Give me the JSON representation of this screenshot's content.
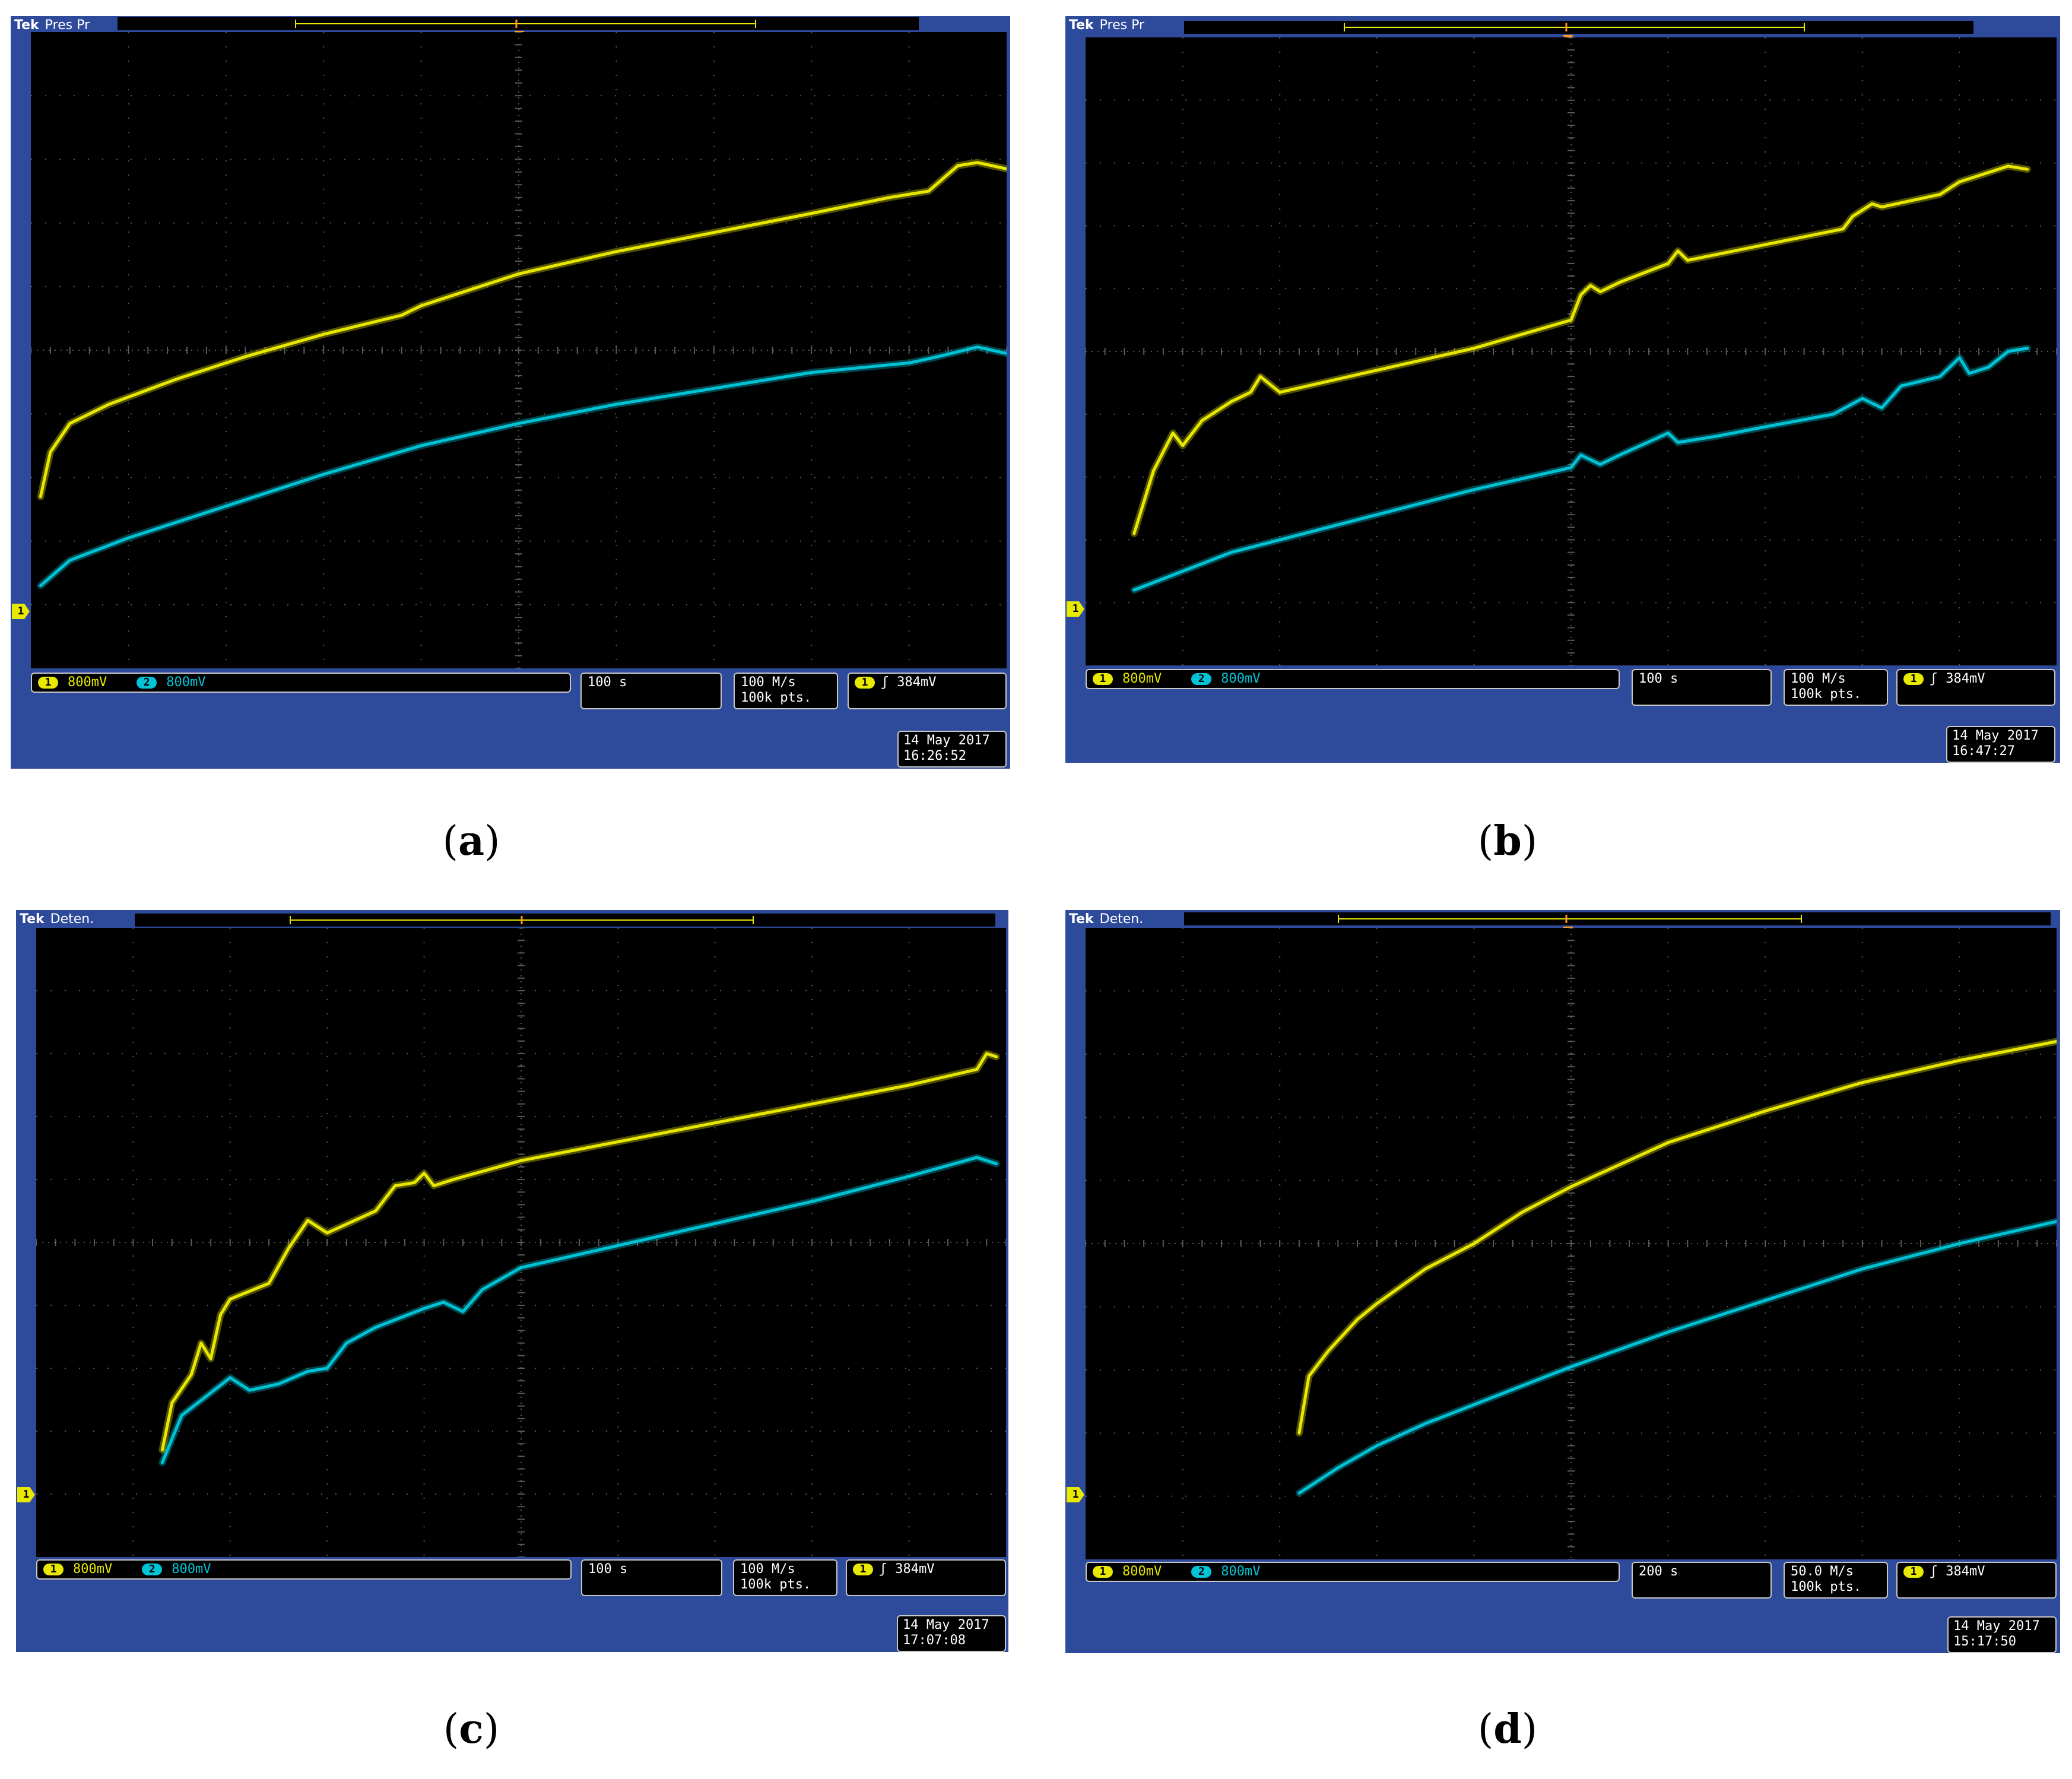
{
  "colors": {
    "ch1": "#e8e800",
    "ch2": "#00c4d6",
    "bezel": "#2e4a9a",
    "grid": "#5a5a5a",
    "trigger_marker": "#ff9a20"
  },
  "panels": [
    {
      "id": "a",
      "caption_label": "a",
      "brand": "Tek",
      "mode": "Pres Pr",
      "ch1_badge": "1",
      "ch1_scale": "800mV",
      "ch2_badge": "2",
      "ch2_scale": "800mV",
      "timebase": "100 s",
      "sample_rate": "100 M/s",
      "record_length": "100k pts.",
      "trigger_badge": "1",
      "trigger_slope_icon": "rising-edge-icon",
      "trigger_symbol": "ʃ",
      "trigger_level": "384mV",
      "date": "14 May 2017",
      "time": "16:26:52",
      "ground_marker": "1",
      "traces": {
        "ch1": [
          [
            0.01,
            7.3
          ],
          [
            0.02,
            6.6
          ],
          [
            0.04,
            6.15
          ],
          [
            0.08,
            5.85
          ],
          [
            0.15,
            5.45
          ],
          [
            0.22,
            5.1
          ],
          [
            0.3,
            4.75
          ],
          [
            0.38,
            4.45
          ],
          [
            0.4,
            4.3
          ],
          [
            0.44,
            4.1
          ],
          [
            0.5,
            3.8
          ],
          [
            0.6,
            3.45
          ],
          [
            0.7,
            3.15
          ],
          [
            0.8,
            2.85
          ],
          [
            0.88,
            2.6
          ],
          [
            0.92,
            2.5
          ],
          [
            0.95,
            2.1
          ],
          [
            0.97,
            2.05
          ],
          [
            1.0,
            2.15
          ]
        ],
        "ch2": [
          [
            0.01,
            8.7
          ],
          [
            0.04,
            8.3
          ],
          [
            0.1,
            7.95
          ],
          [
            0.2,
            7.45
          ],
          [
            0.3,
            6.95
          ],
          [
            0.4,
            6.5
          ],
          [
            0.5,
            6.15
          ],
          [
            0.6,
            5.85
          ],
          [
            0.7,
            5.6
          ],
          [
            0.8,
            5.35
          ],
          [
            0.9,
            5.2
          ],
          [
            0.93,
            5.1
          ],
          [
            0.97,
            4.95
          ],
          [
            1.0,
            5.05
          ]
        ]
      }
    },
    {
      "id": "b",
      "caption_label": "b",
      "brand": "Tek",
      "mode": "Pres Pr",
      "ch1_badge": "1",
      "ch1_scale": "800mV",
      "ch2_badge": "2",
      "ch2_scale": "800mV",
      "timebase": "100 s",
      "sample_rate": "100 M/s",
      "record_length": "100k pts.",
      "trigger_badge": "1",
      "trigger_slope_icon": "rising-edge-icon",
      "trigger_symbol": "ʃ",
      "trigger_level": "384mV",
      "date": "14 May 2017",
      "time": "16:47:27",
      "ground_marker": "1",
      "traces": {
        "ch1": [
          [
            0.05,
            7.9
          ],
          [
            0.07,
            6.9
          ],
          [
            0.09,
            6.3
          ],
          [
            0.1,
            6.5
          ],
          [
            0.12,
            6.1
          ],
          [
            0.15,
            5.8
          ],
          [
            0.17,
            5.65
          ],
          [
            0.18,
            5.4
          ],
          [
            0.2,
            5.65
          ],
          [
            0.3,
            5.3
          ],
          [
            0.4,
            4.95
          ],
          [
            0.5,
            4.5
          ],
          [
            0.51,
            4.1
          ],
          [
            0.52,
            3.95
          ],
          [
            0.53,
            4.05
          ],
          [
            0.55,
            3.9
          ],
          [
            0.6,
            3.6
          ],
          [
            0.61,
            3.4
          ],
          [
            0.62,
            3.55
          ],
          [
            0.7,
            3.3
          ],
          [
            0.78,
            3.05
          ],
          [
            0.79,
            2.85
          ],
          [
            0.81,
            2.65
          ],
          [
            0.82,
            2.7
          ],
          [
            0.88,
            2.5
          ],
          [
            0.9,
            2.3
          ],
          [
            0.93,
            2.15
          ],
          [
            0.95,
            2.05
          ],
          [
            0.97,
            2.1
          ]
        ],
        "ch2": [
          [
            0.05,
            8.8
          ],
          [
            0.1,
            8.5
          ],
          [
            0.15,
            8.2
          ],
          [
            0.2,
            8.0
          ],
          [
            0.3,
            7.6
          ],
          [
            0.4,
            7.2
          ],
          [
            0.5,
            6.85
          ],
          [
            0.51,
            6.65
          ],
          [
            0.53,
            6.8
          ],
          [
            0.55,
            6.65
          ],
          [
            0.6,
            6.3
          ],
          [
            0.61,
            6.45
          ],
          [
            0.65,
            6.35
          ],
          [
            0.7,
            6.2
          ],
          [
            0.77,
            6.0
          ],
          [
            0.8,
            5.75
          ],
          [
            0.82,
            5.9
          ],
          [
            0.84,
            5.55
          ],
          [
            0.88,
            5.4
          ],
          [
            0.9,
            5.1
          ],
          [
            0.91,
            5.35
          ],
          [
            0.93,
            5.25
          ],
          [
            0.95,
            5.0
          ],
          [
            0.97,
            4.95
          ]
        ]
      }
    },
    {
      "id": "c",
      "caption_label": "c",
      "brand": "Tek",
      "mode": "Deten.",
      "ch1_badge": "1",
      "ch1_scale": "800mV",
      "ch2_badge": "2",
      "ch2_scale": "800mV",
      "timebase": "100 s",
      "sample_rate": "100 M/s",
      "record_length": "100k pts.",
      "trigger_badge": "1",
      "trigger_slope_icon": "rising-edge-icon",
      "trigger_symbol": "ʃ",
      "trigger_level": "384mV",
      "date": "14 May 2017",
      "time": "17:07:08",
      "ground_marker": "1",
      "traces": {
        "ch1": [
          [
            0.13,
            8.3
          ],
          [
            0.14,
            7.55
          ],
          [
            0.16,
            7.1
          ],
          [
            0.17,
            6.6
          ],
          [
            0.18,
            6.85
          ],
          [
            0.19,
            6.15
          ],
          [
            0.2,
            5.9
          ],
          [
            0.24,
            5.65
          ],
          [
            0.26,
            5.1
          ],
          [
            0.28,
            4.65
          ],
          [
            0.3,
            4.85
          ],
          [
            0.35,
            4.5
          ],
          [
            0.37,
            4.1
          ],
          [
            0.39,
            4.05
          ],
          [
            0.4,
            3.9
          ],
          [
            0.41,
            4.1
          ],
          [
            0.43,
            4.0
          ],
          [
            0.5,
            3.7
          ],
          [
            0.6,
            3.4
          ],
          [
            0.7,
            3.1
          ],
          [
            0.8,
            2.8
          ],
          [
            0.9,
            2.5
          ],
          [
            0.97,
            2.25
          ],
          [
            0.98,
            2.0
          ],
          [
            0.99,
            2.05
          ]
        ],
        "ch2": [
          [
            0.13,
            8.5
          ],
          [
            0.15,
            7.75
          ],
          [
            0.2,
            7.15
          ],
          [
            0.22,
            7.35
          ],
          [
            0.25,
            7.25
          ],
          [
            0.28,
            7.05
          ],
          [
            0.3,
            7.0
          ],
          [
            0.32,
            6.6
          ],
          [
            0.35,
            6.35
          ],
          [
            0.4,
            6.05
          ],
          [
            0.42,
            5.95
          ],
          [
            0.44,
            6.1
          ],
          [
            0.46,
            5.75
          ],
          [
            0.5,
            5.4
          ],
          [
            0.6,
            5.05
          ],
          [
            0.7,
            4.7
          ],
          [
            0.8,
            4.35
          ],
          [
            0.9,
            3.95
          ],
          [
            0.97,
            3.65
          ],
          [
            0.99,
            3.75
          ]
        ]
      }
    },
    {
      "id": "d",
      "caption_label": "d",
      "brand": "Tek",
      "mode": "Deten.",
      "ch1_badge": "1",
      "ch1_scale": "800mV",
      "ch2_badge": "2",
      "ch2_scale": "800mV",
      "timebase": "200 s",
      "sample_rate": "50.0 M/s",
      "record_length": "100k pts.",
      "trigger_badge": "1",
      "trigger_slope_icon": "rising-edge-icon",
      "trigger_symbol": "ʃ",
      "trigger_level": "384mV",
      "date": "14 May 2017",
      "time": "15:17:50",
      "ground_marker": "1",
      "traces": {
        "ch1": [
          [
            0.22,
            8.0
          ],
          [
            0.23,
            7.1
          ],
          [
            0.25,
            6.7
          ],
          [
            0.28,
            6.2
          ],
          [
            0.3,
            5.95
          ],
          [
            0.35,
            5.4
          ],
          [
            0.4,
            5.0
          ],
          [
            0.45,
            4.5
          ],
          [
            0.5,
            4.1
          ],
          [
            0.55,
            3.75
          ],
          [
            0.6,
            3.4
          ],
          [
            0.7,
            2.9
          ],
          [
            0.8,
            2.45
          ],
          [
            0.9,
            2.1
          ],
          [
            1.0,
            1.8
          ]
        ],
        "ch2": [
          [
            0.22,
            8.95
          ],
          [
            0.26,
            8.55
          ],
          [
            0.3,
            8.2
          ],
          [
            0.35,
            7.85
          ],
          [
            0.4,
            7.55
          ],
          [
            0.5,
            6.95
          ],
          [
            0.6,
            6.4
          ],
          [
            0.7,
            5.9
          ],
          [
            0.8,
            5.4
          ],
          [
            0.9,
            5.0
          ],
          [
            1.0,
            4.65
          ]
        ]
      }
    }
  ]
}
